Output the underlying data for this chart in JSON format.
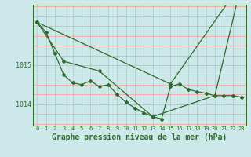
{
  "title": "Graphe pression niveau de la mer (hPa)",
  "hours": [
    0,
    1,
    2,
    3,
    4,
    5,
    6,
    7,
    8,
    9,
    10,
    11,
    12,
    13,
    14,
    15,
    16,
    17,
    18,
    19,
    20,
    21,
    22,
    23
  ],
  "series": [
    [
      1016.1,
      1015.85,
      1015.3,
      1014.75,
      1014.55,
      1014.5,
      1014.6,
      1014.45,
      1014.5,
      1014.25,
      1014.05,
      1013.9,
      1013.78,
      1013.68,
      1013.62,
      1014.45,
      1014.52,
      1014.38,
      1014.32,
      1014.28,
      1014.22,
      1014.22,
      1014.22,
      1014.18
    ],
    [
      1016.1,
      null,
      null,
      1015.1,
      null,
      null,
      null,
      1014.85,
      null,
      null,
      null,
      null,
      null,
      1013.68,
      null,
      null,
      null,
      null,
      null,
      null,
      1014.22,
      null,
      null,
      1017.1
    ],
    [
      1016.1,
      null,
      null,
      null,
      null,
      null,
      null,
      null,
      null,
      null,
      null,
      null,
      null,
      null,
      null,
      1014.52,
      null,
      null,
      null,
      null,
      null,
      null,
      null,
      1017.1
    ]
  ],
  "series_colors": [
    "#2d6a2d",
    "#2d6a2d",
    "#2d6a2d"
  ],
  "bg_color": "#cce8e8",
  "grid_color_v": "#aacccc",
  "grid_color_h": "#ff9999",
  "axis_color": "#2d6a2d",
  "text_color": "#2d6a2d",
  "ylim": [
    1013.45,
    1016.55
  ],
  "yticks": [
    1014.0,
    1015.0
  ],
  "marker": "D",
  "markersize": 2.0,
  "linewidth": 0.9,
  "title_fontsize": 7.0,
  "tick_fontsize": 5.0
}
